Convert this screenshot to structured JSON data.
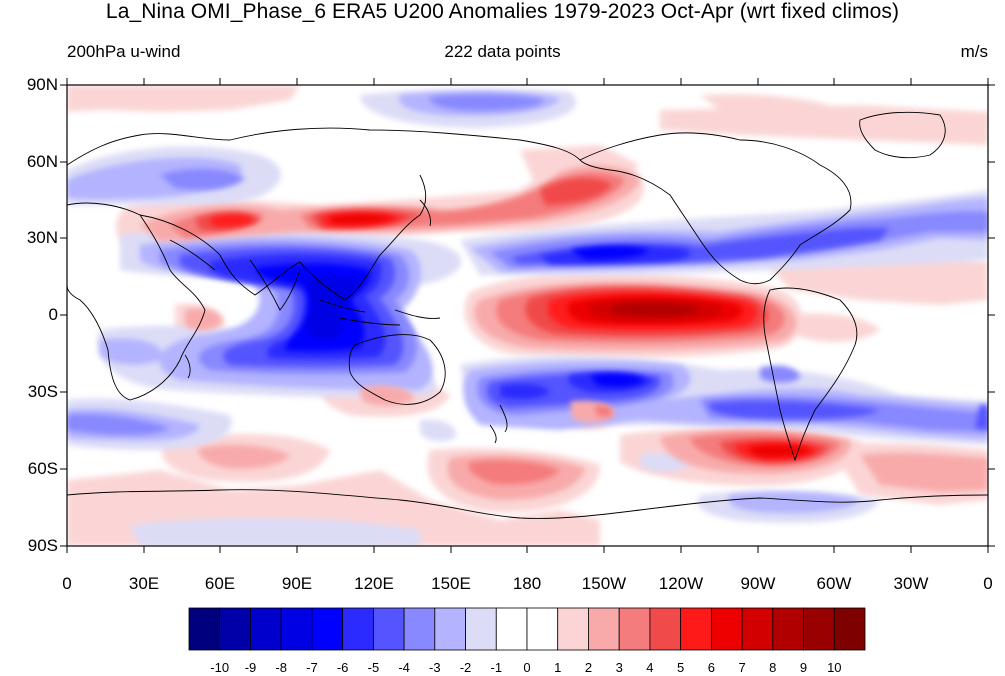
{
  "title": "La_Nina OMI_Phase_6 ERA5 U200 Anomalies 1979-2023 Oct-Apr (wrt fixed climos)",
  "left_label": "200hPa u-wind",
  "center_label": "222 data points",
  "right_label": "m/s",
  "lat_ticks": [
    "90N",
    "60N",
    "30N",
    "0",
    "30S",
    "60S",
    "90S"
  ],
  "lon_ticks": [
    "0",
    "30E",
    "60E",
    "90E",
    "120E",
    "150E",
    "180",
    "150W",
    "120W",
    "90W",
    "60W",
    "30W",
    "0"
  ],
  "colorbar": {
    "labels": [
      "-10",
      "-9",
      "-8",
      "-7",
      "-6",
      "-5",
      "-4",
      "-3",
      "-2",
      "-1",
      "0",
      "1",
      "2",
      "3",
      "4",
      "5",
      "6",
      "7",
      "8",
      "9",
      "10"
    ],
    "colors": [
      "#00007f",
      "#0000a8",
      "#0000cc",
      "#0000e5",
      "#0000ff",
      "#2b2bff",
      "#5555ff",
      "#8888ff",
      "#b3b3ff",
      "#dcdcf7",
      "#ffffff",
      "#ffffff",
      "#fbd5d5",
      "#f8aaaa",
      "#f47c7c",
      "#f14a4a",
      "#ff1a1a",
      "#ee0000",
      "#d30000",
      "#b10000",
      "#990000",
      "#7f0000"
    ]
  }
}
